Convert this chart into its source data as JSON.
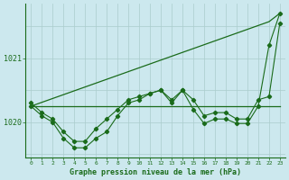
{
  "background_color": "#cce8ee",
  "grid_color": "#aacccc",
  "line_color": "#1a6b1a",
  "xlabel": "Graphe pression niveau de la mer (hPa)",
  "hours": [
    0,
    1,
    2,
    3,
    4,
    5,
    6,
    7,
    8,
    9,
    10,
    11,
    12,
    13,
    14,
    15,
    16,
    17,
    18,
    19,
    20,
    21,
    22,
    23
  ],
  "series_diagonal": [
    1020.25,
    1020.31,
    1020.37,
    1020.43,
    1020.49,
    1020.55,
    1020.61,
    1020.67,
    1020.73,
    1020.79,
    1020.85,
    1020.91,
    1020.97,
    1021.03,
    1021.09,
    1021.15,
    1021.21,
    1021.27,
    1021.33,
    1021.39,
    1021.45,
    1021.51,
    1021.57,
    1021.7
  ],
  "series_flat": [
    1020.25,
    1020.25,
    1020.25,
    1020.25,
    1020.25,
    1020.25,
    1020.25,
    1020.25,
    1020.25,
    1020.25,
    1020.25,
    1020.25,
    1020.25,
    1020.25,
    1020.25,
    1020.25,
    1020.25,
    1020.25,
    1020.25,
    1020.25,
    1020.25,
    1020.25,
    1020.25,
    1020.25
  ],
  "series_upper": [
    1020.3,
    1020.15,
    1020.05,
    1019.85,
    1019.7,
    1019.7,
    1019.9,
    1020.05,
    1020.2,
    1020.35,
    1020.4,
    1020.45,
    1020.5,
    1020.35,
    1020.5,
    1020.35,
    1020.1,
    1020.15,
    1020.15,
    1020.05,
    1020.05,
    1020.35,
    1020.4,
    1021.55
  ],
  "series_lower": [
    1020.25,
    1020.1,
    1020.0,
    1019.75,
    1019.6,
    1019.6,
    1019.75,
    1019.85,
    1020.1,
    1020.3,
    1020.35,
    1020.45,
    1020.5,
    1020.3,
    1020.5,
    1020.2,
    1019.98,
    1020.05,
    1020.05,
    1019.98,
    1019.98,
    1020.25,
    1021.2,
    1021.7
  ],
  "ylim": [
    1019.45,
    1021.85
  ],
  "yticks": [
    1020,
    1021
  ],
  "axis_color": "#1a6b1a",
  "figsize": [
    3.2,
    2.0
  ],
  "dpi": 100
}
